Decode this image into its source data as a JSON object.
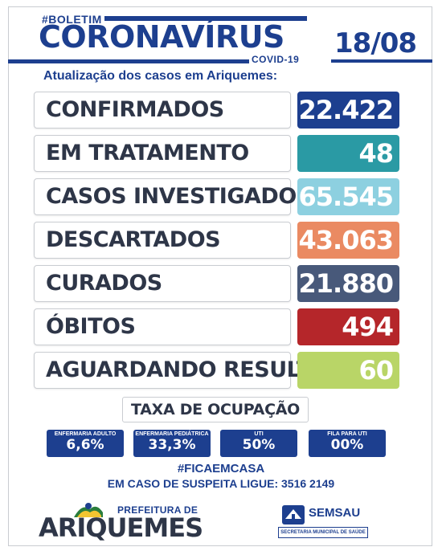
{
  "header": {
    "hashtag": "#BOLETIM",
    "title": "CORONAVÍRUS",
    "covid": "COVID-19",
    "date": "18/08",
    "subtitle": "Atualização dos casos em Ariquemes:"
  },
  "rows": [
    {
      "label": "CONFIRMADOS",
      "value": "22.422",
      "color": "#1d3f8f"
    },
    {
      "label": "EM TRATAMENTO",
      "value": "48",
      "color": "#2a9aa4"
    },
    {
      "label": "CASOS INVESTIGADOS",
      "value": "65.545",
      "color": "#8dd0e0"
    },
    {
      "label": "DESCARTADOS",
      "value": "43.063",
      "color": "#ea8a62"
    },
    {
      "label": "CURADOS",
      "value": "21.880",
      "color": "#48597a"
    },
    {
      "label": "ÓBITOS",
      "value": "494",
      "color": "#b5262a"
    },
    {
      "label": "AGUARDANDO RESULTADO",
      "value": "60",
      "color": "#b9d567"
    }
  ],
  "occupancy": {
    "title": "TAXA DE OCUPAÇÃO",
    "items": [
      {
        "label": "ENFERMARIA ADULTO",
        "value": "6,6%"
      },
      {
        "label": "ENFERMARIA PEDIÁTRICA",
        "value": "33,3%"
      },
      {
        "label": "UTI",
        "value": "50%"
      },
      {
        "label": "FILA PARA UTI",
        "value": "00%"
      }
    ]
  },
  "footer": {
    "hashtag": "#FICAEMCASA",
    "phone_line": "EM CASO DE SUSPEITA LIGUE: 3516 2149",
    "pref_line1": "PREFEITURA DE",
    "pref_line2": "ARIQUEMES",
    "semsau": "SEMSAU",
    "semsau_sub": "SECRETARIA MUNICIPAL DE SAÚDE"
  }
}
